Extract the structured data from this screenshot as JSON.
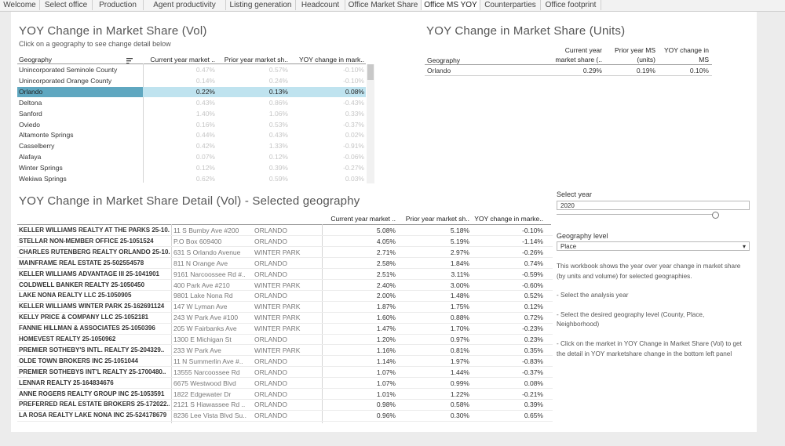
{
  "tabs": [
    {
      "label": "Welcome",
      "active": false
    },
    {
      "label": "Select office",
      "active": false
    },
    {
      "label": "Production",
      "active": false
    },
    {
      "label": "Agent productivity",
      "active": false
    },
    {
      "label": "Listing generation",
      "active": false
    },
    {
      "label": "Headcount",
      "active": false
    },
    {
      "label": "Office Market Share",
      "active": false
    },
    {
      "label": "Office MS YOY",
      "active": true
    },
    {
      "label": "Counterparties",
      "active": false
    },
    {
      "label": "Office footprint",
      "active": false
    }
  ],
  "vol_panel": {
    "title": "YOY Change in Market Share (Vol)",
    "subtitle": "Click on a geography to see change detail below",
    "headers": {
      "geo": "Geography",
      "cur": "Current year market ..",
      "prior": "Prior year market sh..",
      "yoy": "YOY change in mark.."
    },
    "rows": [
      {
        "geo": "Unincorporated Seminole County",
        "cur": "0.47%",
        "prior": "0.57%",
        "yoy": "-0.10%",
        "selected": false
      },
      {
        "geo": "Unincorporated Orange County",
        "cur": "0.14%",
        "prior": "0.24%",
        "yoy": "-0.10%",
        "selected": false
      },
      {
        "geo": "Orlando",
        "cur": "0.22%",
        "prior": "0.13%",
        "yoy": "0.08%",
        "selected": true
      },
      {
        "geo": "Deltona",
        "cur": "0.43%",
        "prior": "0.86%",
        "yoy": "-0.43%",
        "selected": false
      },
      {
        "geo": "Sanford",
        "cur": "1.40%",
        "prior": "1.06%",
        "yoy": "0.33%",
        "selected": false
      },
      {
        "geo": "Oviedo",
        "cur": "0.16%",
        "prior": "0.53%",
        "yoy": "-0.37%",
        "selected": false
      },
      {
        "geo": "Altamonte Springs",
        "cur": "0.44%",
        "prior": "0.43%",
        "yoy": "0.02%",
        "selected": false
      },
      {
        "geo": "Casselberry",
        "cur": "0.42%",
        "prior": "1.33%",
        "yoy": "-0.91%",
        "selected": false
      },
      {
        "geo": "Alafaya",
        "cur": "0.07%",
        "prior": "0.12%",
        "yoy": "-0.06%",
        "selected": false
      },
      {
        "geo": "Winter Springs",
        "cur": "0.12%",
        "prior": "0.39%",
        "yoy": "-0.27%",
        "selected": false
      },
      {
        "geo": "Wekiwa Springs",
        "cur": "0.62%",
        "prior": "0.59%",
        "yoy": "0.03%",
        "selected": false
      }
    ]
  },
  "units_panel": {
    "title": "YOY Change in Market Share (Units)",
    "headers": {
      "geo": "Geography",
      "cur_1": "Current year",
      "cur_2": "market share (..",
      "prior_1": "Prior year MS",
      "prior_2": "(units)",
      "yoy_1": "YOY change in",
      "yoy_2": "MS"
    },
    "row": {
      "geo": "Orlando",
      "cur": "0.29%",
      "prior": "0.19%",
      "yoy": "0.10%"
    }
  },
  "detail_panel": {
    "title": "YOY Change in Market Share Detail (Vol)  - Selected geography",
    "headers": {
      "cur": "Current year market ..",
      "prior": "Prior year market sh..",
      "yoy": "YOY change in marke.."
    },
    "rows": [
      {
        "office": "KELLER WILLIAMS REALTY AT THE PARKS 25-10..",
        "addr": "11 S Bumby Ave #200",
        "city": "ORLANDO",
        "cur": "5.08%",
        "prior": "5.18%",
        "yoy": "-0.10%"
      },
      {
        "office": "STELLAR NON-MEMBER OFFICE 25-1051524",
        "addr": "P.O Box 609400",
        "city": "ORLANDO",
        "cur": "4.05%",
        "prior": "5.19%",
        "yoy": "-1.14%"
      },
      {
        "office": "CHARLES RUTENBERG REALTY ORLANDO 25-10..",
        "addr": "631 S Orlando Avenue",
        "city": "WINTER PARK",
        "cur": "2.71%",
        "prior": "2.97%",
        "yoy": "-0.26%"
      },
      {
        "office": "MAINFRAME REAL ESTATE 25-502554578",
        "addr": "811 N Orange Ave",
        "city": "ORLANDO",
        "cur": "2.58%",
        "prior": "1.84%",
        "yoy": "0.74%"
      },
      {
        "office": "KELLER WILLIAMS ADVANTAGE III 25-1041901",
        "addr": "9161 Narcoossee Rd #..",
        "city": "ORLANDO",
        "cur": "2.51%",
        "prior": "3.11%",
        "yoy": "-0.59%"
      },
      {
        "office": "COLDWELL BANKER REALTY 25-1050450",
        "addr": "400 Park Ave #210",
        "city": "WINTER PARK",
        "cur": "2.40%",
        "prior": "3.00%",
        "yoy": "-0.60%"
      },
      {
        "office": "LAKE NONA REALTY LLC 25-1050905",
        "addr": "9801 Lake Nona Rd",
        "city": "ORLANDO",
        "cur": "2.00%",
        "prior": "1.48%",
        "yoy": "0.52%"
      },
      {
        "office": "KELLER WILLIAMS WINTER PARK 25-162691124",
        "addr": "147 W Lyman Ave",
        "city": "WINTER PARK",
        "cur": "1.87%",
        "prior": "1.75%",
        "yoy": "0.12%"
      },
      {
        "office": "KELLY PRICE & COMPANY  LLC 25-1052181",
        "addr": "243 W Park Ave #100",
        "city": "WINTER PARK",
        "cur": "1.60%",
        "prior": "0.88%",
        "yoy": "0.72%"
      },
      {
        "office": "FANNIE HILLMAN & ASSOCIATES 25-1050396",
        "addr": "205 W Fairbanks Ave",
        "city": "WINTER PARK",
        "cur": "1.47%",
        "prior": "1.70%",
        "yoy": "-0.23%"
      },
      {
        "office": "HOMEVEST REALTY 25-1050962",
        "addr": "1300 E Michigan St",
        "city": "ORLANDO",
        "cur": "1.20%",
        "prior": "0.97%",
        "yoy": "0.23%"
      },
      {
        "office": "PREMIER SOTHEBY'S INTL. REALTY 25-204329..",
        "addr": "233 W Park Ave",
        "city": "WINTER PARK",
        "cur": "1.16%",
        "prior": "0.81%",
        "yoy": "0.35%"
      },
      {
        "office": "OLDE TOWN BROKERS INC 25-1051044",
        "addr": "11 N Summerlin Ave #..",
        "city": "ORLANDO",
        "cur": "1.14%",
        "prior": "1.97%",
        "yoy": "-0.83%"
      },
      {
        "office": "PREMIER SOTHEBYS INT'L REALTY 25-1700480..",
        "addr": "13555 Narcoossee Rd",
        "city": "ORLANDO",
        "cur": "1.07%",
        "prior": "1.44%",
        "yoy": "-0.37%"
      },
      {
        "office": "LENNAR REALTY 25-164834676",
        "addr": "6675 Westwood Blvd",
        "city": "ORLANDO",
        "cur": "1.07%",
        "prior": "0.99%",
        "yoy": "0.08%"
      },
      {
        "office": "ANNE ROGERS REALTY GROUP INC 25-1053591",
        "addr": "1822 Edgewater Dr",
        "city": "ORLANDO",
        "cur": "1.01%",
        "prior": "1.22%",
        "yoy": "-0.21%"
      },
      {
        "office": "PREFERRED REAL ESTATE BROKERS 25-172022..",
        "addr": "2121 S Hiawassee Rd ..",
        "city": "ORLANDO",
        "cur": "0.98%",
        "prior": "0.58%",
        "yoy": "0.39%"
      },
      {
        "office": "LA ROSA REALTY LAKE NONA INC 25-524178679",
        "addr": "8236 Lee Vista Blvd Su..",
        "city": "ORLANDO",
        "cur": "0.96%",
        "prior": "0.30%",
        "yoy": "0.65%"
      }
    ]
  },
  "controls": {
    "year_label": "Select year",
    "year_value": "2020",
    "slider_fraction": 1.0,
    "geo_level_label": "Geography level",
    "geo_level_value": "Place",
    "help_1": "This workbook shows the year over year change in market share (by units and volume) for selected geographies.",
    "help_2": "- Select the analysis year",
    "help_3": "- Select the desired geography level (County, Place, Neighborhood)",
    "help_4": "- Click on the market in YOY Change in Market Share (Vol) to get the detail in YOY marketshare change in the bottom left panel"
  },
  "colors": {
    "accent": "#4e79a7",
    "selected_fill": "#bfe3ef",
    "selected_strip": "#5fa7c0"
  }
}
